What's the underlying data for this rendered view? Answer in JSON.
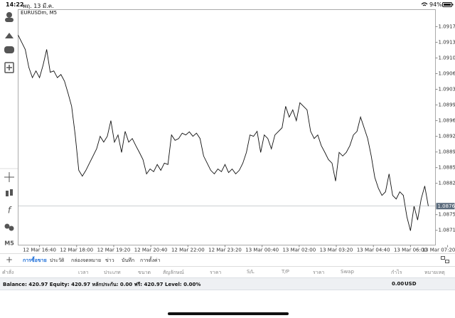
{
  "status_bar": {
    "time": "14:22",
    "date": "พฤ. 13 มี.ค.",
    "battery": "94%"
  },
  "sidebar": {
    "timeframe": "M5"
  },
  "chart_data": {
    "type": "line",
    "title": "EURUSDm, M5",
    "color": "#111111",
    "values": [
      1.09151,
      1.09135,
      1.09119,
      1.09079,
      1.09056,
      1.09071,
      1.09056,
      1.09084,
      1.09119,
      1.09068,
      1.09071,
      1.09056,
      1.09063,
      1.09048,
      1.09021,
      1.08992,
      1.08928,
      1.08849,
      1.08836,
      1.08849,
      1.08865,
      1.08881,
      1.08897,
      1.08925,
      1.08912,
      1.08925,
      1.0896,
      1.08912,
      1.08928,
      1.08889,
      1.08936,
      1.08912,
      1.0892,
      1.08904,
      1.08889,
      1.08873,
      1.08841,
      1.08852,
      1.08846,
      1.08862,
      1.08849,
      1.08865,
      1.08862,
      1.08928,
      1.08916,
      1.0892,
      1.08932,
      1.08928,
      1.08935,
      1.08925,
      1.08932,
      1.0892,
      1.08881,
      1.08865,
      1.08849,
      1.08841,
      1.08852,
      1.08846,
      1.08862,
      1.08844,
      1.08852,
      1.08841,
      1.08849,
      1.08865,
      1.08889,
      1.08928,
      1.08925,
      1.08936,
      1.08889,
      1.08928,
      1.0892,
      1.08897,
      1.08928,
      1.08936,
      1.08944,
      1.08992,
      1.08968,
      1.08984,
      1.0896,
      1.09,
      1.08992,
      1.08984,
      1.08936,
      1.0892,
      1.08928,
      1.08904,
      1.08889,
      1.08873,
      1.08865,
      1.08825,
      1.08889,
      1.08881,
      1.08889,
      1.08904,
      1.08928,
      1.08936,
      1.08968,
      1.08944,
      1.0892,
      1.08881,
      1.08833,
      1.08809,
      1.08793,
      1.08801,
      1.08841,
      1.08793,
      1.08785,
      1.08801,
      1.08793,
      1.08745,
      1.08714,
      1.08769,
      1.08738,
      1.08785,
      1.08814,
      1.08769
    ],
    "xlim": [
      0,
      117
    ],
    "xticks": [
      {
        "value": 6,
        "label": "12 Mar 16:40"
      },
      {
        "value": 16.4,
        "label": "12 Mar 18:00"
      },
      {
        "value": 26.8,
        "label": "12 Mar 19:20"
      },
      {
        "value": 37.2,
        "label": "12 Mar 20:40"
      },
      {
        "value": 47.6,
        "label": "12 Mar 22:00"
      },
      {
        "value": 58,
        "label": "12 Mar 23:20"
      },
      {
        "value": 68.4,
        "label": "13 Mar 00:40"
      },
      {
        "value": 78.8,
        "label": "13 Mar 02:00"
      },
      {
        "value": 89.2,
        "label": "13 Mar 03:20"
      },
      {
        "value": 99.6,
        "label": "13 Mar 04:40"
      },
      {
        "value": 110,
        "label": "13 Mar 06:00"
      },
      {
        "value": 120.4,
        "label": "13 Mar 07:20"
      }
    ],
    "ylim": [
      1.08682,
      1.09208
    ],
    "yticks": [
      {
        "value": 1.0917,
        "label": "1.09170"
      },
      {
        "value": 1.09135,
        "label": "1.09135"
      },
      {
        "value": 1.091,
        "label": "1.09100"
      },
      {
        "value": 1.09065,
        "label": "1.09065"
      },
      {
        "value": 1.0903,
        "label": "1.09030"
      },
      {
        "value": 1.08995,
        "label": "1.08995"
      },
      {
        "value": 1.0896,
        "label": "1.08960"
      },
      {
        "value": 1.08925,
        "label": "1.08925"
      },
      {
        "value": 1.0889,
        "label": "1.08890"
      },
      {
        "value": 1.08855,
        "label": "1.08855"
      },
      {
        "value": 1.0882,
        "label": "1.08820"
      },
      {
        "value": 1.0875,
        "label": "1.08750"
      },
      {
        "value": 1.08715,
        "label": "1.08715"
      }
    ],
    "current_price": 1.08769,
    "grid": false
  },
  "tabs": [
    "การซื้อขาย",
    "ประวัติ",
    "กล่องจดหมาย",
    "ข่าว",
    "บันทึก",
    "การตั้งค่า"
  ],
  "table": {
    "header": [
      "คำสั่ง",
      "เวลา",
      "ประเภท",
      "ขนาด",
      "สัญลักษณ์",
      "ราคา",
      "S/L",
      "T/P",
      "ราคา",
      "Swap",
      "กำไร",
      "หมายเหตุ"
    ]
  },
  "account": {
    "summary": "Balance: 420.97 Equity: 420.97 หลักประกัน: 0.00 ฟรี: 420.97 Level: 0.00%",
    "profit": "0.00",
    "currency": "USD"
  }
}
